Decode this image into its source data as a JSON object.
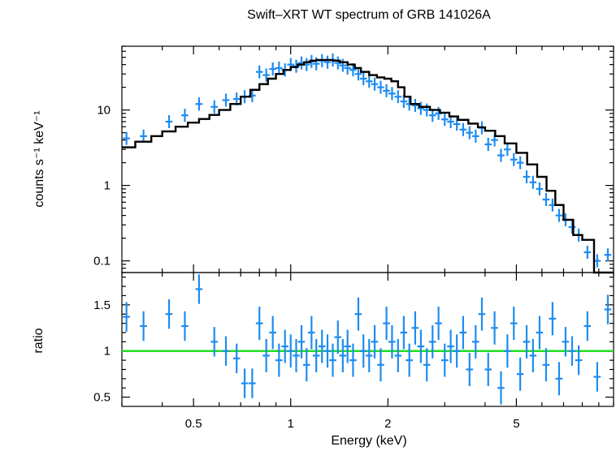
{
  "chart_data": [
    {
      "type": "scatter",
      "panel": "spectrum",
      "title": "Swift–XRT WT spectrum of GRB 141026A",
      "xlabel": "",
      "ylabel": "counts s⁻¹ keV⁻¹",
      "xscale": "log",
      "yscale": "log",
      "xlim": [
        0.3,
        10
      ],
      "ylim": [
        0.07,
        70
      ],
      "yticks": [
        {
          "value": 0.1,
          "label": "0.1"
        },
        {
          "value": 1,
          "label": "1"
        },
        {
          "value": 10,
          "label": "10"
        }
      ],
      "colors": {
        "data": "#1e8cf0",
        "model": "#000000"
      },
      "series": [
        {
          "kind": "data-crosses",
          "x": [
            0.31,
            0.35,
            0.42,
            0.47,
            0.52,
            0.58,
            0.63,
            0.68,
            0.72,
            0.76,
            0.8,
            0.84,
            0.88,
            0.92,
            0.96,
            1.0,
            1.04,
            1.08,
            1.12,
            1.16,
            1.2,
            1.25,
            1.3,
            1.35,
            1.4,
            1.45,
            1.5,
            1.56,
            1.62,
            1.68,
            1.75,
            1.82,
            1.9,
            1.98,
            2.06,
            2.15,
            2.24,
            2.33,
            2.43,
            2.53,
            2.64,
            2.75,
            2.87,
            3.0,
            3.13,
            3.27,
            3.42,
            3.58,
            3.74,
            3.91,
            4.09,
            4.28,
            4.48,
            4.69,
            4.91,
            5.14,
            5.38,
            5.63,
            5.9,
            6.18,
            6.47,
            6.78,
            7.1,
            7.44,
            7.8,
            8.3,
            8.9,
            9.6
          ],
          "y": [
            4.2,
            4.5,
            7.0,
            8.5,
            12.0,
            11.0,
            13.5,
            14.0,
            15.0,
            15.5,
            32.0,
            29.0,
            35.0,
            36.0,
            34.0,
            40.0,
            38.0,
            42.0,
            40.0,
            44.0,
            41.0,
            45.0,
            43.0,
            46.0,
            42.0,
            39.0,
            36.0,
            34.0,
            30.0,
            26.0,
            24.0,
            22.0,
            20.0,
            18.0,
            16.5,
            15.0,
            13.0,
            12.0,
            11.5,
            10.5,
            10.0,
            8.5,
            9.0,
            7.5,
            7.0,
            6.5,
            5.5,
            5.0,
            4.5,
            5.8,
            3.5,
            4.0,
            2.5,
            3.0,
            2.2,
            2.0,
            1.3,
            1.1,
            0.9,
            0.65,
            0.55,
            0.4,
            0.35,
            0.28,
            0.22,
            0.13,
            0.1,
            0.12
          ]
        },
        {
          "kind": "model-step",
          "x": [
            0.3,
            0.33,
            0.37,
            0.4,
            0.44,
            0.48,
            0.52,
            0.56,
            0.6,
            0.65,
            0.7,
            0.75,
            0.8,
            0.85,
            0.9,
            0.95,
            1.0,
            1.05,
            1.1,
            1.15,
            1.2,
            1.28,
            1.35,
            1.42,
            1.5,
            1.58,
            1.65,
            1.75,
            1.85,
            1.95,
            2.05,
            2.15,
            2.25,
            2.35,
            2.5,
            2.7,
            2.9,
            3.1,
            3.3,
            3.55,
            3.8,
            4.0,
            4.3,
            4.6,
            5.0,
            5.4,
            5.8,
            6.2,
            6.6,
            7.0,
            7.5,
            8.0,
            8.7,
            9.3,
            10.0
          ],
          "y": [
            3.2,
            3.8,
            4.5,
            5.2,
            6.0,
            6.8,
            7.6,
            8.6,
            10.0,
            12.0,
            15.0,
            18.5,
            22.0,
            26.0,
            30.0,
            34.0,
            37.0,
            40.0,
            43.0,
            45.0,
            46.0,
            46.0,
            45.0,
            43.0,
            40.0,
            36.0,
            32.0,
            29.0,
            27.0,
            26.0,
            24.0,
            20.0,
            15.0,
            12.0,
            11.0,
            10.0,
            9.2,
            8.2,
            7.4,
            6.6,
            5.9,
            5.3,
            4.5,
            3.6,
            2.7,
            1.9,
            1.3,
            0.85,
            0.55,
            0.35,
            0.22,
            0.19,
            0.06,
            0.06,
            0.06
          ]
        }
      ]
    },
    {
      "type": "scatter",
      "panel": "ratio",
      "xlabel": "Energy (keV)",
      "ylabel": "ratio",
      "xscale": "log",
      "xlim": [
        0.3,
        10
      ],
      "ylim": [
        0.4,
        1.85
      ],
      "xticks": [
        {
          "value": 0.5,
          "label": "0.5"
        },
        {
          "value": 1,
          "label": "1"
        },
        {
          "value": 2,
          "label": "2"
        },
        {
          "value": 5,
          "label": "5"
        }
      ],
      "yticks": [
        {
          "value": 0.5,
          "label": "0.5"
        },
        {
          "value": 1,
          "label": "1"
        },
        {
          "value": 1.5,
          "label": "1.5"
        }
      ],
      "reference_line": 1,
      "colors": {
        "data": "#1e8cf0",
        "reference": "#22dd22"
      },
      "series": [
        {
          "kind": "data-crosses",
          "x": [
            0.31,
            0.35,
            0.42,
            0.47,
            0.52,
            0.58,
            0.63,
            0.68,
            0.72,
            0.76,
            0.8,
            0.84,
            0.88,
            0.92,
            0.96,
            1.0,
            1.04,
            1.08,
            1.12,
            1.16,
            1.2,
            1.25,
            1.3,
            1.35,
            1.4,
            1.45,
            1.5,
            1.56,
            1.62,
            1.68,
            1.75,
            1.82,
            1.9,
            1.98,
            2.06,
            2.15,
            2.24,
            2.33,
            2.43,
            2.53,
            2.64,
            2.75,
            2.87,
            3.0,
            3.13,
            3.27,
            3.42,
            3.58,
            3.74,
            3.91,
            4.09,
            4.28,
            4.48,
            4.69,
            4.91,
            5.14,
            5.38,
            5.63,
            5.9,
            6.18,
            6.47,
            6.78,
            7.1,
            7.44,
            7.8,
            8.3,
            8.9,
            9.6
          ],
          "y": [
            1.37,
            1.27,
            1.4,
            1.27,
            1.67,
            1.1,
            1.0,
            0.92,
            0.65,
            0.65,
            1.3,
            0.95,
            1.2,
            0.9,
            1.05,
            1.0,
            0.95,
            1.1,
            0.85,
            1.2,
            0.95,
            1.05,
            1.0,
            0.9,
            1.15,
            0.95,
            1.05,
            0.9,
            1.4,
            1.0,
            0.95,
            1.1,
            0.85,
            1.3,
            1.1,
            0.95,
            1.2,
            0.9,
            1.25,
            1.05,
            0.85,
            1.1,
            1.3,
            0.9,
            1.05,
            1.0,
            1.2,
            0.8,
            1.1,
            1.4,
            0.8,
            1.25,
            0.6,
            1.0,
            1.3,
            0.75,
            1.1,
            0.95,
            1.2,
            0.85,
            1.35,
            0.7,
            1.1,
            1.0,
            0.9,
            1.27,
            0.72,
            1.45
          ]
        }
      ]
    }
  ]
}
